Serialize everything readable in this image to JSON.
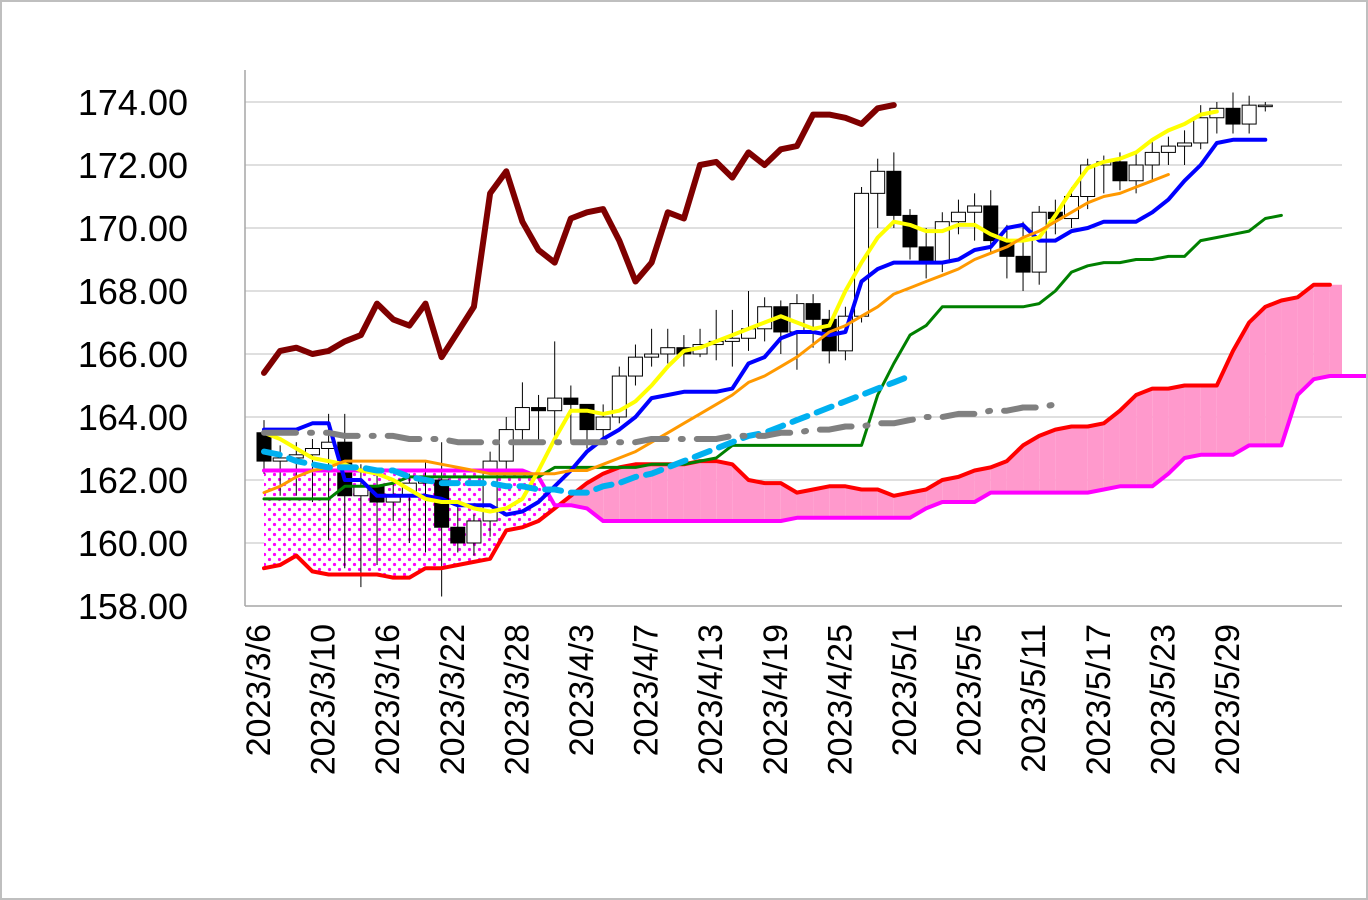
{
  "chart_data": {
    "type": "line",
    "title": "",
    "xlabel": "",
    "ylabel": "",
    "ylim": [
      158,
      174.5
    ],
    "y_ticks": [
      "158.00",
      "160.00",
      "162.00",
      "164.00",
      "166.00",
      "168.00",
      "170.00",
      "172.00",
      "174.00"
    ],
    "x_tick_labels": [
      "2023/3/6",
      "2023/3/10",
      "2023/3/16",
      "2023/3/22",
      "2023/3/28",
      "2023/4/3",
      "2023/4/7",
      "2023/4/13",
      "2023/4/19",
      "2023/4/25",
      "2023/5/1",
      "2023/5/5",
      "2023/5/11",
      "2023/5/17",
      "2023/5/23",
      "2023/5/29"
    ],
    "grid": "horizontal",
    "legend": "none",
    "candlesticks": {
      "open": [
        163.5,
        162.6,
        162.7,
        162.8,
        163.0,
        163.2,
        161.5,
        161.8,
        161.3,
        161.5,
        161.9,
        162.0,
        160.5,
        160.0,
        160.7,
        162.6,
        163.6,
        164.3,
        164.2,
        164.6,
        164.4,
        163.6,
        164.0,
        165.3,
        165.9,
        166.0,
        166.2,
        166.0,
        166.3,
        166.4,
        166.5,
        166.8,
        167.5,
        166.7,
        167.6,
        167.1,
        166.1,
        167.2,
        171.1,
        171.8,
        170.4,
        169.4,
        168.9,
        170.2,
        170.5,
        170.7,
        169.6,
        169.1,
        168.6,
        170.5,
        170.3,
        171.0,
        172.0,
        172.1,
        171.5,
        172.0,
        172.4,
        172.6,
        172.7,
        173.5,
        173.8,
        173.3,
        173.9
      ],
      "close": [
        162.6,
        162.7,
        162.8,
        163.0,
        163.2,
        161.5,
        161.8,
        161.3,
        161.5,
        161.9,
        162.0,
        160.5,
        160.0,
        160.7,
        162.6,
        163.6,
        164.3,
        164.2,
        164.6,
        164.4,
        163.6,
        164.0,
        165.3,
        165.9,
        166.0,
        166.2,
        166.0,
        166.3,
        166.4,
        166.5,
        166.8,
        167.5,
        166.7,
        167.6,
        167.1,
        166.1,
        167.2,
        171.1,
        171.8,
        170.4,
        169.4,
        168.9,
        170.2,
        170.5,
        170.7,
        169.6,
        169.1,
        168.6,
        170.5,
        170.3,
        171.0,
        172.0,
        172.1,
        171.5,
        172.0,
        172.4,
        172.6,
        172.7,
        173.5,
        173.8,
        173.3,
        173.9,
        173.9
      ],
      "high": [
        163.9,
        163.1,
        163.2,
        163.3,
        164.1,
        164.1,
        162.5,
        162.3,
        162.0,
        162.2,
        162.6,
        163.2,
        161.3,
        160.9,
        162.9,
        164.0,
        165.1,
        164.7,
        166.4,
        165.0,
        164.4,
        164.4,
        165.6,
        166.3,
        166.8,
        166.8,
        166.6,
        166.8,
        167.4,
        167.4,
        168.0,
        167.8,
        167.7,
        167.9,
        167.9,
        167.4,
        167.5,
        171.3,
        172.2,
        172.4,
        170.6,
        170.0,
        170.5,
        170.9,
        171.1,
        171.2,
        170.1,
        170.2,
        170.7,
        170.9,
        171.3,
        172.2,
        172.3,
        172.4,
        172.4,
        172.8,
        172.9,
        173.1,
        173.9,
        174.0,
        174.3,
        174.2,
        174.0
      ],
      "low": [
        162.2,
        161.5,
        161.5,
        161.3,
        160.1,
        159.2,
        158.6,
        159.3,
        160.7,
        160.0,
        159.7,
        158.3,
        159.7,
        159.6,
        160.2,
        162.2,
        163.2,
        163.2,
        163.4,
        163.2,
        163.0,
        163.3,
        163.8,
        165.0,
        165.6,
        165.7,
        165.6,
        165.9,
        165.8,
        165.6,
        166.1,
        166.4,
        166.0,
        165.5,
        166.2,
        165.7,
        165.8,
        167.0,
        170.0,
        170.0,
        169.0,
        168.4,
        168.6,
        169.8,
        169.6,
        169.2,
        168.4,
        168.0,
        168.2,
        169.8,
        170.0,
        170.6,
        171.1,
        171.2,
        171.1,
        171.5,
        172.0,
        172.0,
        172.5,
        173.0,
        173.0,
        173.0,
        173.7
      ]
    },
    "series": [
      {
        "color": "#7f0000",
        "width": 6,
        "dash": "",
        "x_start": 0,
        "values": [
          165.4,
          166.1,
          166.2,
          166.0,
          166.1,
          166.4,
          166.6,
          167.6,
          167.1,
          166.9,
          167.6,
          165.9,
          166.7,
          167.5,
          171.1,
          171.8,
          170.2,
          169.3,
          168.9,
          170.3,
          170.5,
          170.6,
          169.6,
          168.3,
          168.9,
          170.5,
          170.3,
          172.0,
          172.1,
          171.6,
          172.4,
          172.0,
          172.5,
          172.6,
          173.6,
          173.6,
          173.5,
          173.3,
          173.8,
          173.9
        ]
      },
      {
        "color": "#ff0000",
        "width": 4,
        "dash": "",
        "x_start": 0,
        "values": [
          159.2,
          159.3,
          159.6,
          159.1,
          159.0,
          159.0,
          159.0,
          159.0,
          158.9,
          158.9,
          159.2,
          159.2,
          159.3,
          159.4,
          159.5,
          160.4,
          160.5,
          160.7,
          161.1,
          161.5,
          161.9,
          162.2,
          162.4,
          162.5,
          162.5,
          162.5,
          162.5,
          162.6,
          162.6,
          162.5,
          162.0,
          161.9,
          161.9,
          161.6,
          161.7,
          161.8,
          161.8,
          161.7,
          161.7,
          161.5,
          161.6,
          161.7,
          162.0,
          162.1,
          162.3,
          162.4,
          162.6,
          163.1,
          163.4,
          163.6,
          163.7,
          163.7,
          163.8,
          164.2,
          164.7,
          164.9,
          164.9,
          165.0,
          165.0,
          165.0,
          166.1,
          167.0,
          167.5,
          167.7,
          167.8,
          168.2,
          168.2
        ]
      },
      {
        "color": "#ff00ff",
        "width": 4,
        "dash": "",
        "x_start": 0,
        "values": [
          162.3,
          162.3,
          162.3,
          162.3,
          162.3,
          162.3,
          162.3,
          162.3,
          162.3,
          162.3,
          162.3,
          162.3,
          162.3,
          162.3,
          162.3,
          162.3,
          162.3,
          162.1,
          161.2,
          161.2,
          161.1,
          160.7,
          160.7,
          160.7,
          160.7,
          160.7,
          160.7,
          160.7,
          160.7,
          160.7,
          160.7,
          160.7,
          160.7,
          160.8,
          160.8,
          160.8,
          160.8,
          160.8,
          160.8,
          160.8,
          160.8,
          161.1,
          161.3,
          161.3,
          161.3,
          161.6,
          161.6,
          161.6,
          161.6,
          161.6,
          161.6,
          161.6,
          161.7,
          161.8,
          161.8,
          161.8,
          162.2,
          162.7,
          162.8,
          162.8,
          162.8,
          163.1,
          163.1,
          163.1,
          164.7,
          165.2,
          165.3,
          165.3,
          165.3,
          165.3
        ]
      },
      {
        "color": "#008000",
        "width": 3,
        "dash": "",
        "x_start": 0,
        "values": [
          161.4,
          161.4,
          161.4,
          161.4,
          161.4,
          161.8,
          161.8,
          161.8,
          161.9,
          162.1,
          162.1,
          162.1,
          162.1,
          162.1,
          162.1,
          162.1,
          162.1,
          162.1,
          162.4,
          162.4,
          162.4,
          162.4,
          162.4,
          162.4,
          162.5,
          162.5,
          162.5,
          162.6,
          162.7,
          163.1,
          163.1,
          163.1,
          163.1,
          163.1,
          163.1,
          163.1,
          163.1,
          163.1,
          164.7,
          165.7,
          166.6,
          166.9,
          167.5,
          167.5,
          167.5,
          167.5,
          167.5,
          167.5,
          167.6,
          168.0,
          168.6,
          168.8,
          168.9,
          168.9,
          169.0,
          169.0,
          169.1,
          169.1,
          169.6,
          169.7,
          169.8,
          169.9,
          170.3,
          170.4
        ]
      },
      {
        "color": "#0000ff",
        "width": 4,
        "dash": "",
        "x_start": 0,
        "values": [
          163.6,
          163.6,
          163.6,
          163.8,
          163.8,
          162.0,
          162.0,
          161.5,
          161.5,
          161.5,
          161.5,
          161.4,
          161.2,
          161.2,
          161.2,
          160.9,
          161.0,
          161.3,
          161.8,
          162.3,
          162.9,
          163.3,
          163.6,
          164.0,
          164.6,
          164.7,
          164.8,
          164.8,
          164.8,
          164.9,
          165.7,
          165.9,
          166.5,
          166.7,
          166.7,
          166.6,
          166.7,
          168.3,
          168.7,
          168.9,
          168.9,
          168.9,
          168.9,
          169.0,
          169.3,
          169.4,
          170.0,
          170.1,
          169.6,
          169.6,
          169.9,
          170.0,
          170.2,
          170.2,
          170.2,
          170.5,
          170.9,
          171.5,
          172.0,
          172.7,
          172.8,
          172.8,
          172.8
        ]
      },
      {
        "color": "#ffff00",
        "width": 4,
        "dash": "",
        "x_start": 0,
        "values": [
          163.5,
          163.3,
          163.0,
          162.7,
          162.6,
          162.5,
          162.3,
          162.2,
          162.0,
          161.7,
          161.4,
          161.3,
          161.3,
          161.1,
          161.0,
          161.1,
          161.4,
          162.3,
          163.3,
          164.2,
          164.2,
          164.1,
          164.2,
          164.5,
          165.0,
          165.6,
          166.1,
          166.2,
          166.4,
          166.6,
          166.8,
          167.0,
          167.2,
          167.0,
          166.8,
          166.9,
          168.0,
          168.9,
          169.7,
          170.2,
          170.1,
          169.9,
          169.9,
          170.1,
          170.1,
          169.8,
          169.6,
          169.6,
          169.7,
          170.4,
          171.2,
          171.9,
          172.1,
          172.2,
          172.4,
          172.8,
          173.1,
          173.3,
          173.6,
          173.7
        ]
      },
      {
        "color": "#ff9900",
        "width": 3,
        "dash": "",
        "x_start": 0,
        "values": [
          161.6,
          161.8,
          162.1,
          162.3,
          162.4,
          162.6,
          162.6,
          162.6,
          162.6,
          162.6,
          162.6,
          162.5,
          162.4,
          162.3,
          162.2,
          162.2,
          162.2,
          162.2,
          162.2,
          162.3,
          162.3,
          162.5,
          162.7,
          162.9,
          163.2,
          163.5,
          163.8,
          164.1,
          164.4,
          164.7,
          165.1,
          165.3,
          165.6,
          165.9,
          166.3,
          166.7,
          166.9,
          167.2,
          167.5,
          167.9,
          168.1,
          168.3,
          168.5,
          168.7,
          169.0,
          169.2,
          169.4,
          169.7,
          169.9,
          170.2,
          170.5,
          170.8,
          171.0,
          171.1,
          171.3,
          171.5,
          171.7
        ]
      },
      {
        "color": "#00b0f0",
        "width": 6,
        "dash": "16 10",
        "x_start": 0,
        "values": [
          162.9,
          162.8,
          162.6,
          162.5,
          162.4,
          162.4,
          162.4,
          162.3,
          162.3,
          162.1,
          162.0,
          161.9,
          161.9,
          161.9,
          161.9,
          161.8,
          161.8,
          161.7,
          161.7,
          161.6,
          161.6,
          161.8,
          161.9,
          162.1,
          162.2,
          162.4,
          162.6,
          162.8,
          163.0,
          163.2,
          163.4,
          163.5,
          163.7,
          163.9,
          164.1,
          164.3,
          164.5,
          164.7,
          164.9,
          165.1,
          165.3
        ]
      },
      {
        "color": "#808080",
        "width": 6,
        "dash": "32 14 2 14",
        "x_start": 0,
        "values": [
          163.5,
          163.5,
          163.5,
          163.5,
          163.5,
          163.4,
          163.4,
          163.4,
          163.4,
          163.3,
          163.3,
          163.3,
          163.2,
          163.2,
          163.2,
          163.2,
          163.2,
          163.2,
          163.2,
          163.2,
          163.2,
          163.2,
          163.2,
          163.2,
          163.3,
          163.3,
          163.3,
          163.3,
          163.3,
          163.4,
          163.4,
          163.4,
          163.5,
          163.5,
          163.6,
          163.6,
          163.7,
          163.7,
          163.8,
          163.8,
          163.9,
          164.0,
          164.0,
          164.1,
          164.1,
          164.2,
          164.2,
          164.3,
          164.3,
          164.4
        ]
      }
    ]
  }
}
